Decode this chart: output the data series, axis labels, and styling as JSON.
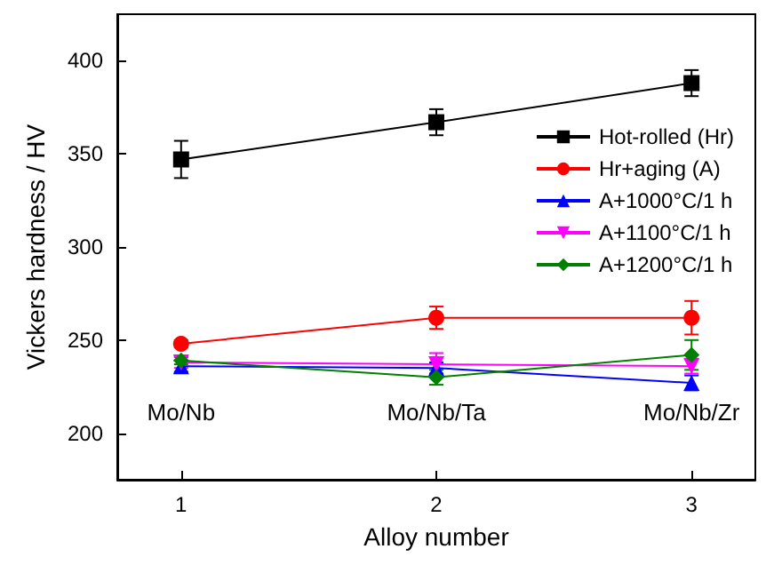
{
  "chart_data": {
    "type": "line",
    "xlabel": "Alloy number",
    "ylabel": "Vickers hardness / HV",
    "x": [
      1,
      2,
      3
    ],
    "xlim": [
      0.75,
      3.25
    ],
    "xticks": [
      1,
      2,
      3
    ],
    "ylim": [
      175,
      425
    ],
    "yticks": [
      200,
      250,
      300,
      350,
      400
    ],
    "series": [
      {
        "name": "Hot-rolled (Hr)",
        "color": "#000000",
        "marker": "square",
        "values": [
          347,
          367,
          388
        ],
        "errors": [
          10,
          7,
          7
        ]
      },
      {
        "name": "Hr+aging (A)",
        "color": "#ff0000",
        "marker": "circle",
        "values": [
          248,
          262,
          262
        ],
        "errors": [
          2,
          6,
          9
        ]
      },
      {
        "name": "A+1000°C/1 h",
        "color": "#0000ff",
        "marker": "triangle",
        "values": [
          236,
          235,
          227
        ],
        "errors": [
          3,
          3,
          4
        ]
      },
      {
        "name": "A+1100°C/1 h",
        "color": "#ff00ff",
        "marker": "triangle-down",
        "values": [
          238,
          237,
          236
        ],
        "errors": [
          3,
          6,
          4
        ]
      },
      {
        "name": "A+1200°C/1 h",
        "color": "#008000",
        "marker": "diamond",
        "values": [
          239,
          230,
          242
        ],
        "errors": [
          2,
          4,
          8
        ]
      }
    ],
    "annotations": [
      "Mo/Nb",
      "Mo/Nb/Ta",
      "Mo/Nb/Zr"
    ],
    "legend": "top right",
    "grid": false,
    "line_style": "solid"
  }
}
